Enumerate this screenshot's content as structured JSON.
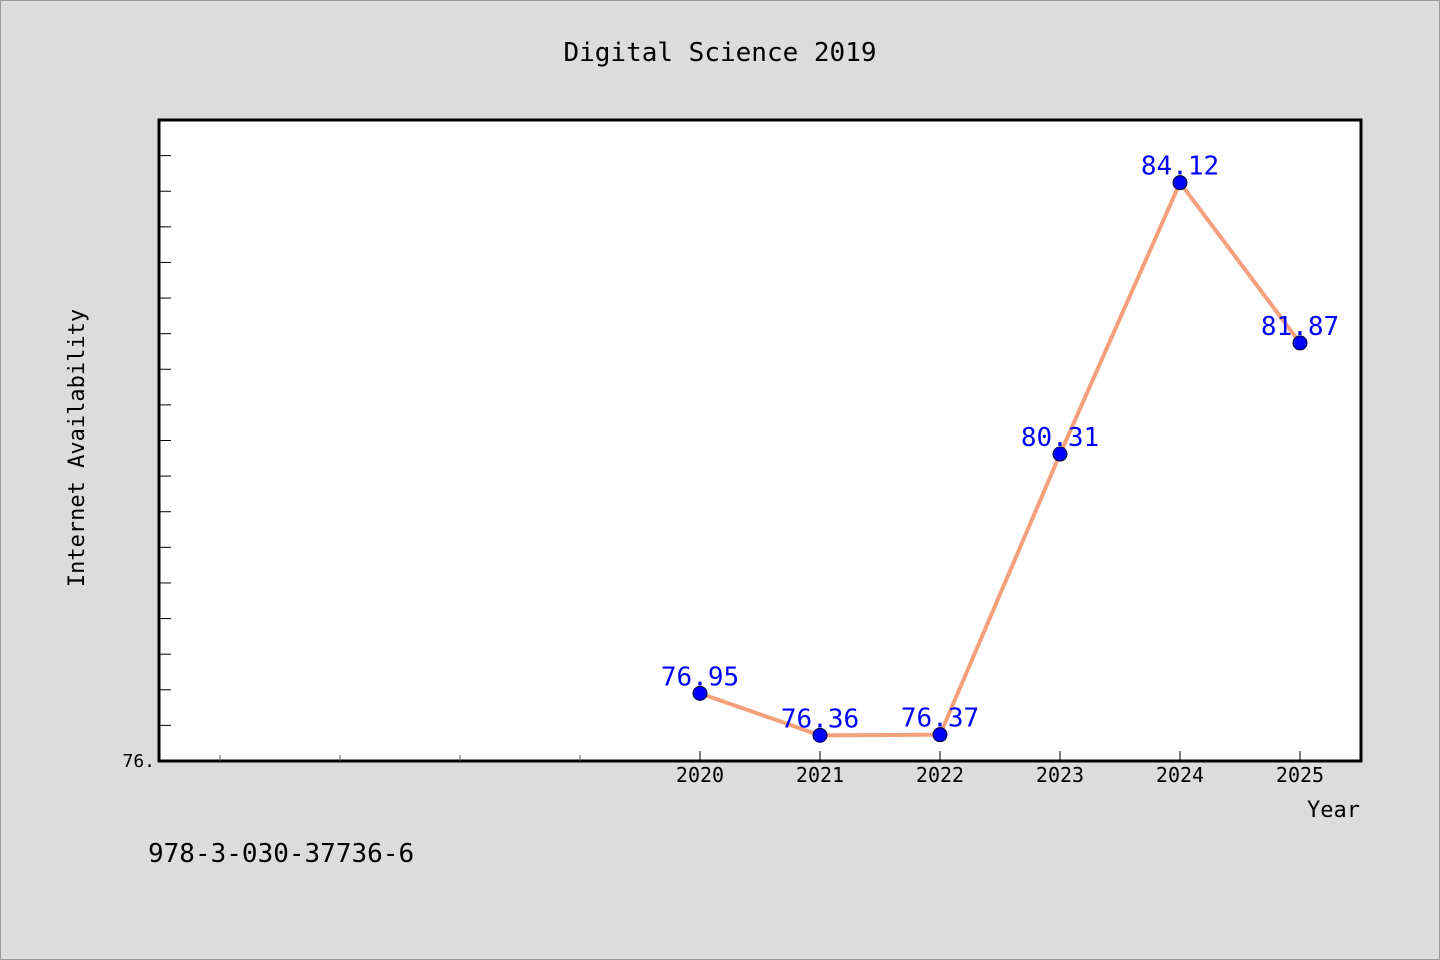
{
  "footer_text": "978-3-030-37736-6",
  "chart_data": {
    "type": "line",
    "title": "Digital Science 2019",
    "xlabel": "Year",
    "ylabel": "Internet Availability",
    "categories": [
      "2020",
      "2021",
      "2022",
      "2023",
      "2024",
      "2025"
    ],
    "series": [
      {
        "values": [
          76.95,
          76.36,
          76.37,
          80.31,
          84.12,
          81.87
        ]
      }
    ],
    "data_labels": [
      "76.95",
      "76.36",
      "76.37",
      "80.31",
      "84.12",
      "81.87"
    ],
    "y_tick_label": "76.",
    "ylim": [
      76.0,
      85.0
    ],
    "grid": false,
    "legend": "none",
    "colors": {
      "line": "#f4a07a",
      "marker": "#0000ff",
      "label": "#0000ff",
      "frame": "#000000",
      "background": "#dcdcdc",
      "plot_bg": "#ffffff"
    }
  }
}
